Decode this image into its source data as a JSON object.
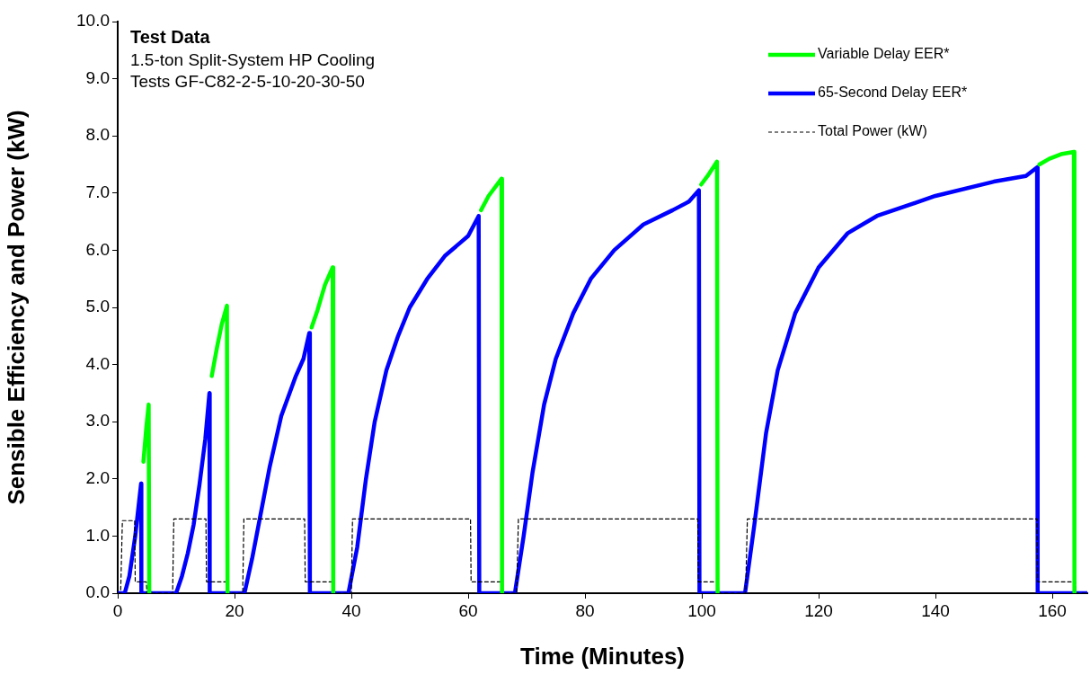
{
  "chart_data": {
    "type": "line",
    "title": "Test Data",
    "subtitle": "1.5-ton Split-System HP Cooling",
    "annotations": [
      "Tests GF-C82-2-5-10-20-30-50"
    ],
    "xlabel": "Time (Minutes)",
    "ylabel": "Sensible Efficiency and Power (kW)",
    "xlim": [
      0,
      166
    ],
    "xticks": [
      0,
      20,
      40,
      60,
      80,
      100,
      120,
      140,
      160
    ],
    "ylim": [
      0,
      10
    ],
    "yticks": [
      {
        "value": 0,
        "label": "0.0"
      },
      {
        "value": 1,
        "label": "1.0"
      },
      {
        "value": 2,
        "label": "2.0"
      },
      {
        "value": 3,
        "label": "3.0"
      },
      {
        "value": 4,
        "label": "4.0"
      },
      {
        "value": 5,
        "label": "5.0"
      },
      {
        "value": 6,
        "label": "6.0"
      },
      {
        "value": 7,
        "label": "7.0"
      },
      {
        "value": 8,
        "label": "8.0"
      },
      {
        "value": 9,
        "label": "9.0"
      },
      {
        "value": 10,
        "label": "10.0"
      }
    ],
    "grid": false,
    "legend": "top right",
    "marker": "none",
    "series": [
      {
        "name": "Variable Delay EER*",
        "color": "#00ff00",
        "x": [
          4.4,
          4.9,
          5.3,
          5.4,
          10,
          16.1,
          17,
          17.8,
          18.7,
          18.8,
          25,
          33.2,
          34.2,
          35.5,
          36.8,
          36.9,
          50,
          62.2,
          63.5,
          65.7,
          65.8,
          80,
          99.9,
          101,
          102.6,
          102.7,
          130,
          157.8,
          159.5,
          161.5,
          163.7,
          163.8
        ],
        "values": [
          2.3,
          2.9,
          3.3,
          0,
          null,
          3.8,
          4.3,
          4.7,
          5.03,
          0,
          null,
          4.65,
          4.95,
          5.4,
          5.7,
          0,
          null,
          6.7,
          6.95,
          7.25,
          0,
          null,
          7.15,
          7.3,
          7.55,
          0,
          null,
          7.5,
          7.6,
          7.68,
          7.72,
          0
        ]
      },
      {
        "name": "65-Second Delay EER*",
        "color": "#0000ff",
        "x": [
          0,
          1.2,
          2,
          3,
          4,
          4.05,
          10,
          11,
          12,
          13,
          14,
          15,
          15.7,
          15.75,
          21.7,
          23,
          24.5,
          26,
          28,
          30.5,
          31.8,
          32.8,
          32.9,
          39.5,
          41,
          42.5,
          44,
          46,
          48,
          50,
          53,
          56,
          60,
          61.8,
          61.9,
          68,
          69.5,
          71,
          73,
          75,
          78,
          81,
          85,
          90,
          95,
          97.8,
          99.5,
          99.6,
          107.4,
          109,
          111,
          113,
          116,
          120,
          125,
          130,
          140,
          150,
          155.5,
          157.4,
          157.5,
          166
        ],
        "values": [
          0,
          0,
          0.3,
          1.0,
          1.92,
          0,
          0,
          0.3,
          0.7,
          1.2,
          1.9,
          2.7,
          3.5,
          0,
          0,
          0.6,
          1.4,
          2.2,
          3.1,
          3.8,
          4.1,
          4.55,
          0,
          0,
          0.8,
          2.0,
          3.0,
          3.9,
          4.5,
          5.0,
          5.5,
          5.9,
          6.25,
          6.6,
          0,
          0,
          1.0,
          2.1,
          3.3,
          4.1,
          4.9,
          5.5,
          6.0,
          6.45,
          6.7,
          6.85,
          7.05,
          0,
          0,
          1.2,
          2.8,
          3.9,
          4.9,
          5.7,
          6.3,
          6.6,
          6.95,
          7.2,
          7.3,
          7.45,
          0,
          0
        ]
      },
      {
        "name": "Total Power (kW)",
        "color": "#000000",
        "line_style": "dashed",
        "x": [
          0,
          0.5,
          0.8,
          2.9,
          3.0,
          4.9,
          5.0,
          9.4,
          9.6,
          15.1,
          15.2,
          18.7,
          18.8,
          21.4,
          21.6,
          32,
          32.1,
          37,
          37.1,
          40,
          40.2,
          60.4,
          60.5,
          65.9,
          66,
          68.3,
          68.6,
          99.3,
          99.4,
          102.8,
          102.9,
          107.5,
          107.8,
          157.4,
          157.5,
          164,
          164.1,
          166
        ],
        "values": [
          0,
          0,
          1.27,
          1.27,
          0.2,
          0.2,
          0,
          0,
          1.3,
          1.3,
          0.2,
          0.2,
          0,
          0,
          1.3,
          1.3,
          0.2,
          0.2,
          0,
          0,
          1.3,
          1.3,
          0.2,
          0.2,
          0,
          0,
          1.3,
          1.3,
          0.2,
          0.2,
          0,
          0,
          1.3,
          1.3,
          0.2,
          0.2,
          0,
          0
        ]
      }
    ]
  }
}
